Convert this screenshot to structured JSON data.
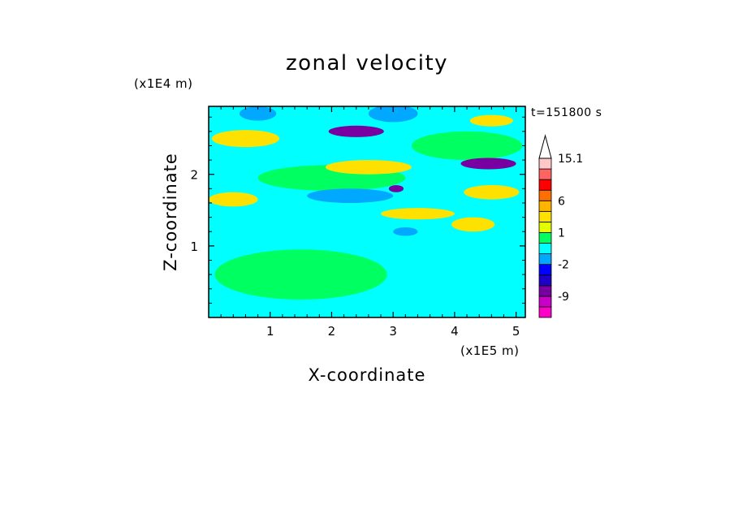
{
  "chart_data": {
    "type": "heatmap",
    "title": "zonal velocity",
    "xlabel": "X-coordinate",
    "ylabel": "Z-coordinate",
    "x_scale_label": "(x1E5 m)",
    "y_scale_label": "(x1E4 m)",
    "time_label": "t=151800 s",
    "xlim": [
      0,
      5.15
    ],
    "ylim": [
      0,
      2.95
    ],
    "x_ticks": [
      1,
      2,
      3,
      4,
      5
    ],
    "y_ticks": [
      1,
      2
    ],
    "colorbar": {
      "levels": [
        -15,
        -12,
        -9,
        -6,
        -4,
        -2,
        -1,
        0,
        1,
        2,
        4,
        6,
        9,
        12,
        15.1
      ],
      "colors": [
        "#ff00c8",
        "#c800c8",
        "#7800a0",
        "#1e00c8",
        "#0000ff",
        "#00a8ff",
        "#00ffff",
        "#00ff60",
        "#e6ff00",
        "#ffe100",
        "#ffb400",
        "#ff6e00",
        "#ff0000",
        "#ff6464",
        "#ffc8c8"
      ],
      "tick_labels": [
        "15.1",
        "6",
        "1",
        "-2",
        "-9"
      ],
      "extend": "max"
    },
    "features": [
      {
        "x": 0.6,
        "z": 2.5,
        "rx": 0.55,
        "rz": 0.12,
        "value": 3
      },
      {
        "x": 2.4,
        "z": 2.6,
        "rx": 0.45,
        "rz": 0.08,
        "value": -7
      },
      {
        "x": 4.55,
        "z": 2.15,
        "rx": 0.45,
        "rz": 0.08,
        "value": -7
      },
      {
        "x": 3.05,
        "z": 1.8,
        "rx": 0.12,
        "rz": 0.05,
        "value": -7
      },
      {
        "x": 2.6,
        "z": 2.1,
        "rx": 0.7,
        "rz": 0.1,
        "value": 3
      },
      {
        "x": 0.4,
        "z": 1.65,
        "rx": 0.4,
        "rz": 0.1,
        "value": 2
      },
      {
        "x": 2.3,
        "z": 1.7,
        "rx": 0.7,
        "rz": 0.1,
        "value": -1.5
      },
      {
        "x": 3.4,
        "z": 1.45,
        "rx": 0.6,
        "rz": 0.08,
        "value": 2
      },
      {
        "x": 4.6,
        "z": 1.75,
        "rx": 0.45,
        "rz": 0.1,
        "value": 2.5
      },
      {
        "x": 4.6,
        "z": 2.75,
        "rx": 0.35,
        "rz": 0.08,
        "value": 2
      },
      {
        "x": 0.8,
        "z": 2.85,
        "rx": 0.3,
        "rz": 0.1,
        "value": -1.5
      },
      {
        "x": 3.0,
        "z": 2.85,
        "rx": 0.4,
        "rz": 0.12,
        "value": -1.5
      },
      {
        "x": 3.2,
        "z": 1.2,
        "rx": 0.2,
        "rz": 0.06,
        "value": -1.5
      },
      {
        "x": 4.3,
        "z": 1.3,
        "rx": 0.35,
        "rz": 0.1,
        "value": 2.5
      },
      {
        "x": 0.8,
        "z": 1.2,
        "rx": 0.6,
        "rz": 0.12,
        "value": -0.5
      },
      {
        "x": 3.3,
        "z": 1.0,
        "rx": 0.7,
        "rz": 0.15,
        "value": -0.5
      },
      {
        "x": 1.3,
        "z": 0.2,
        "rx": 0.9,
        "rz": 0.12,
        "value": -0.5
      },
      {
        "x": 4.6,
        "z": 0.4,
        "rx": 0.8,
        "rz": 0.3,
        "value": -0.5
      },
      {
        "x": 1.5,
        "z": 0.6,
        "rx": 1.4,
        "rz": 0.35,
        "value": 0.6
      },
      {
        "x": 2.0,
        "z": 1.95,
        "rx": 1.2,
        "rz": 0.18,
        "value": 0.6
      },
      {
        "x": 4.2,
        "z": 2.4,
        "rx": 0.9,
        "rz": 0.2,
        "value": 0.6
      },
      {
        "x": 0.6,
        "z": 2.1,
        "rx": 0.6,
        "rz": 0.12,
        "value": -0.5
      }
    ]
  }
}
